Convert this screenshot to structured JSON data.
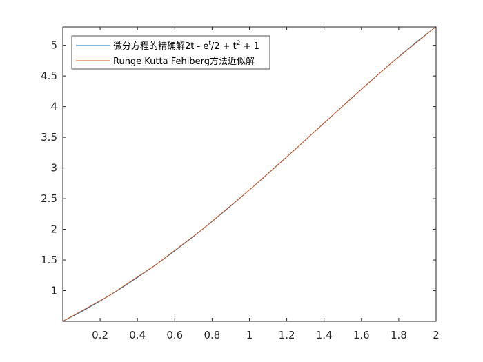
{
  "chart_data": {
    "type": "line",
    "xlim": [
      0,
      2
    ],
    "ylim": [
      0.5,
      5.3
    ],
    "x_ticks": [
      0.2,
      0.4,
      0.6,
      0.8,
      1,
      1.2,
      1.4,
      1.6,
      1.8,
      2
    ],
    "x_tick_labels": [
      "0.2",
      "0.4",
      "0.6",
      "0.8",
      "1",
      "1.2",
      "1.4",
      "1.6",
      "1.8",
      "2"
    ],
    "y_ticks": [
      1,
      1.5,
      2,
      2.5,
      3,
      3.5,
      4,
      4.5,
      5
    ],
    "y_tick_labels": [
      "1",
      "1.5",
      "2",
      "2.5",
      "3",
      "3.5",
      "4",
      "4.5",
      "5"
    ],
    "grid": false,
    "legend_position": "top-left",
    "series": [
      {
        "name": "微分方程的精确解2t - e^t/2 + t^2 + 1",
        "legend_parts": {
          "prefix": "微分方程的精确解2t - e",
          "sup1": "t",
          "mid": "/2 + t",
          "sup2": "2",
          "suffix": " + 1"
        },
        "color": "#0072BD",
        "x": [
          0,
          0.1,
          0.2,
          0.3,
          0.4,
          0.5,
          0.6,
          0.7,
          0.8,
          0.9,
          1.0,
          1.1,
          1.2,
          1.3,
          1.4,
          1.5,
          1.6,
          1.7,
          1.8,
          1.9,
          2.0
        ],
        "y": [
          0.5,
          0.6574,
          0.8293,
          1.0151,
          1.2141,
          1.4256,
          1.6489,
          1.8831,
          2.1272,
          2.3802,
          2.6409,
          2.9079,
          3.1799,
          3.4553,
          3.7324,
          4.0092,
          4.2835,
          4.553,
          4.8152,
          5.0671,
          5.3055
        ]
      },
      {
        "name": "Runge Kutta Fehlberg方法近似解",
        "color": "#D95319",
        "x": [
          0,
          0.25,
          0.5,
          0.75,
          1.0,
          1.25,
          1.5,
          1.75,
          2.0
        ],
        "y": [
          0.5,
          0.9204,
          1.4256,
          2.0039,
          2.6409,
          3.3173,
          4.0092,
          4.6858,
          5.3055
        ]
      }
    ]
  }
}
